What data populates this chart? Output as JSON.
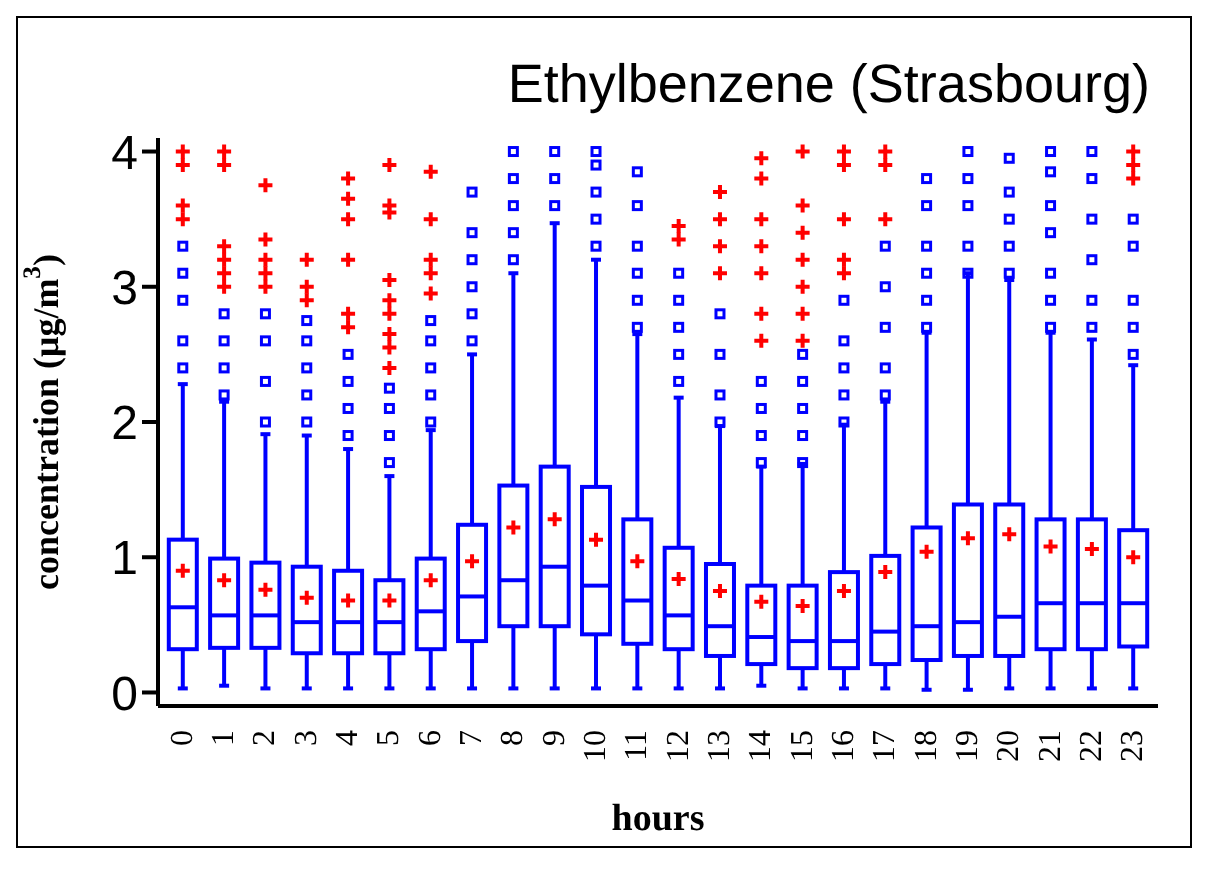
{
  "chart_data": {
    "type": "box",
    "title": "Ethylbenzene (Strasbourg)",
    "xlabel": "hours",
    "ylabel": "concentration (μg/m$^{3}$)",
    "categories": [
      "0",
      "1",
      "2",
      "3",
      "4",
      "5",
      "6",
      "7",
      "8",
      "9",
      "10",
      "11",
      "12",
      "13",
      "14",
      "15",
      "16",
      "17",
      "18",
      "19",
      "20",
      "21",
      "22",
      "23"
    ],
    "ylim": [
      -0.1,
      4.1
    ],
    "yticks": [
      0,
      1,
      2,
      3,
      4
    ],
    "series": [
      {
        "color": "#0000ff",
        "marker": "square",
        "boxes": [
          {
            "low": 0.03,
            "q1": 0.32,
            "median": 0.63,
            "q3": 1.13,
            "high": 2.28,
            "mean": 0.9,
            "outliers": [
              2.4,
              2.6,
              2.9,
              3.1,
              3.3
            ]
          },
          {
            "low": 0.05,
            "q1": 0.33,
            "median": 0.57,
            "q3": 0.99,
            "high": 2.15,
            "mean": 0.83,
            "outliers": [
              2.2,
              2.4,
              2.6,
              2.8
            ]
          },
          {
            "low": 0.03,
            "q1": 0.33,
            "median": 0.57,
            "q3": 0.96,
            "high": 1.91,
            "mean": 0.76,
            "outliers": [
              2.0,
              2.3,
              2.6,
              2.8
            ]
          },
          {
            "low": 0.03,
            "q1": 0.29,
            "median": 0.52,
            "q3": 0.93,
            "high": 1.9,
            "mean": 0.7,
            "outliers": [
              2.0,
              2.2,
              2.4,
              2.6,
              2.75
            ]
          },
          {
            "low": 0.03,
            "q1": 0.29,
            "median": 0.52,
            "q3": 0.9,
            "high": 1.8,
            "mean": 0.68,
            "outliers": [
              1.9,
              2.1,
              2.3,
              2.5
            ]
          },
          {
            "low": 0.03,
            "q1": 0.29,
            "median": 0.52,
            "q3": 0.83,
            "high": 1.6,
            "mean": 0.68,
            "outliers": [
              1.7,
              1.9,
              2.1,
              2.25
            ]
          },
          {
            "low": 0.03,
            "q1": 0.32,
            "median": 0.6,
            "q3": 0.99,
            "high": 1.94,
            "mean": 0.83,
            "outliers": [
              2.0,
              2.2,
              2.4,
              2.6,
              2.75
            ]
          },
          {
            "low": 0.03,
            "q1": 0.38,
            "median": 0.71,
            "q3": 1.24,
            "high": 2.5,
            "mean": 0.97,
            "outliers": [
              2.6,
              2.8,
              3.0,
              3.2,
              3.4,
              3.7
            ]
          },
          {
            "low": 0.03,
            "q1": 0.49,
            "median": 0.83,
            "q3": 1.53,
            "high": 3.1,
            "mean": 1.22,
            "outliers": [
              3.2,
              3.4,
              3.6,
              3.8,
              4.0
            ]
          },
          {
            "low": 0.03,
            "q1": 0.49,
            "median": 0.93,
            "q3": 1.67,
            "high": 3.47,
            "mean": 1.28,
            "outliers": [
              3.6,
              3.8,
              4.0
            ]
          },
          {
            "low": 0.03,
            "q1": 0.43,
            "median": 0.79,
            "q3": 1.52,
            "high": 3.2,
            "mean": 1.13,
            "outliers": [
              3.3,
              3.5,
              3.7,
              3.9,
              4.0
            ]
          },
          {
            "low": 0.03,
            "q1": 0.36,
            "median": 0.68,
            "q3": 1.28,
            "high": 2.65,
            "mean": 0.97,
            "outliers": [
              2.7,
              2.9,
              3.1,
              3.3,
              3.6,
              3.85
            ]
          },
          {
            "low": 0.03,
            "q1": 0.32,
            "median": 0.57,
            "q3": 1.07,
            "high": 2.18,
            "mean": 0.84,
            "outliers": [
              2.3,
              2.5,
              2.7,
              2.9,
              3.1
            ]
          },
          {
            "low": 0.03,
            "q1": 0.27,
            "median": 0.49,
            "q3": 0.95,
            "high": 1.97,
            "mean": 0.75,
            "outliers": [
              2.0,
              2.2,
              2.5,
              2.8
            ]
          },
          {
            "low": 0.05,
            "q1": 0.21,
            "median": 0.41,
            "q3": 0.79,
            "high": 1.67,
            "mean": 0.67,
            "outliers": [
              1.7,
              1.9,
              2.1,
              2.3
            ]
          },
          {
            "low": 0.03,
            "q1": 0.18,
            "median": 0.38,
            "q3": 0.79,
            "high": 1.69,
            "mean": 0.64,
            "outliers": [
              1.7,
              1.9,
              2.1,
              2.3,
              2.5
            ]
          },
          {
            "low": 0.03,
            "q1": 0.18,
            "median": 0.38,
            "q3": 0.89,
            "high": 1.98,
            "mean": 0.75,
            "outliers": [
              2.0,
              2.2,
              2.4,
              2.6,
              2.9
            ]
          },
          {
            "low": 0.03,
            "q1": 0.21,
            "median": 0.45,
            "q3": 1.01,
            "high": 2.15,
            "mean": 0.89,
            "outliers": [
              2.2,
              2.4,
              2.7,
              3.0,
              3.3
            ]
          },
          {
            "low": 0.02,
            "q1": 0.24,
            "median": 0.49,
            "q3": 1.22,
            "high": 2.66,
            "mean": 1.04,
            "outliers": [
              2.7,
              2.9,
              3.1,
              3.3,
              3.6,
              3.8
            ]
          },
          {
            "low": 0.02,
            "q1": 0.27,
            "median": 0.52,
            "q3": 1.39,
            "high": 3.1,
            "mean": 1.14,
            "outliers": [
              3.1,
              3.3,
              3.6,
              3.8,
              4.0
            ]
          },
          {
            "low": 0.03,
            "q1": 0.27,
            "median": 0.56,
            "q3": 1.39,
            "high": 3.05,
            "mean": 1.17,
            "outliers": [
              3.1,
              3.3,
              3.5,
              3.7,
              3.95
            ]
          },
          {
            "low": 0.03,
            "q1": 0.32,
            "median": 0.66,
            "q3": 1.28,
            "high": 2.66,
            "mean": 1.08,
            "outliers": [
              2.7,
              2.9,
              3.1,
              3.4,
              3.6,
              3.85,
              4.0
            ]
          },
          {
            "low": 0.03,
            "q1": 0.32,
            "median": 0.66,
            "q3": 1.28,
            "high": 2.61,
            "mean": 1.06,
            "outliers": [
              2.7,
              2.9,
              3.2,
              3.5,
              3.8,
              4.0
            ]
          },
          {
            "low": 0.03,
            "q1": 0.34,
            "median": 0.66,
            "q3": 1.2,
            "high": 2.42,
            "mean": 1.0,
            "outliers": [
              2.5,
              2.7,
              2.9,
              3.3,
              3.5
            ]
          }
        ]
      },
      {
        "type": "scatter",
        "color": "#ff0000",
        "marker": "cross",
        "x": [
          "0",
          "0",
          "0",
          "0",
          "1",
          "1",
          "1",
          "1",
          "1",
          "1",
          "2",
          "2",
          "2",
          "2",
          "2",
          "3",
          "3",
          "3",
          "4",
          "4",
          "4",
          "4",
          "4",
          "4",
          "5",
          "5",
          "5",
          "5",
          "5",
          "5",
          "5",
          "5",
          "5",
          "6",
          "6",
          "6",
          "6",
          "6",
          "12",
          "12",
          "13",
          "13",
          "13",
          "13",
          "14",
          "14",
          "14",
          "14",
          "14",
          "14",
          "14",
          "15",
          "15",
          "15",
          "15",
          "15",
          "15",
          "15",
          "16",
          "16",
          "16",
          "16",
          "16",
          "17",
          "17",
          "17",
          "23",
          "23",
          "23"
        ],
        "values": [
          3.5,
          3.6,
          3.9,
          4.0,
          3.0,
          3.1,
          3.2,
          3.3,
          3.9,
          4.0,
          3.0,
          3.1,
          3.2,
          3.35,
          3.75,
          2.9,
          3.0,
          3.2,
          2.7,
          2.8,
          3.2,
          3.5,
          3.65,
          3.8,
          2.4,
          2.55,
          2.65,
          2.8,
          2.9,
          3.05,
          3.55,
          3.6,
          3.9,
          2.95,
          3.1,
          3.2,
          3.5,
          3.85,
          3.35,
          3.45,
          3.1,
          3.3,
          3.5,
          3.7,
          2.6,
          2.8,
          3.1,
          3.3,
          3.5,
          3.8,
          3.95,
          2.6,
          2.8,
          3.0,
          3.2,
          3.4,
          3.6,
          4.0,
          3.1,
          3.2,
          3.5,
          3.9,
          4.0,
          3.5,
          3.9,
          4.0,
          3.8,
          3.9,
          4.0
        ]
      }
    ]
  }
}
